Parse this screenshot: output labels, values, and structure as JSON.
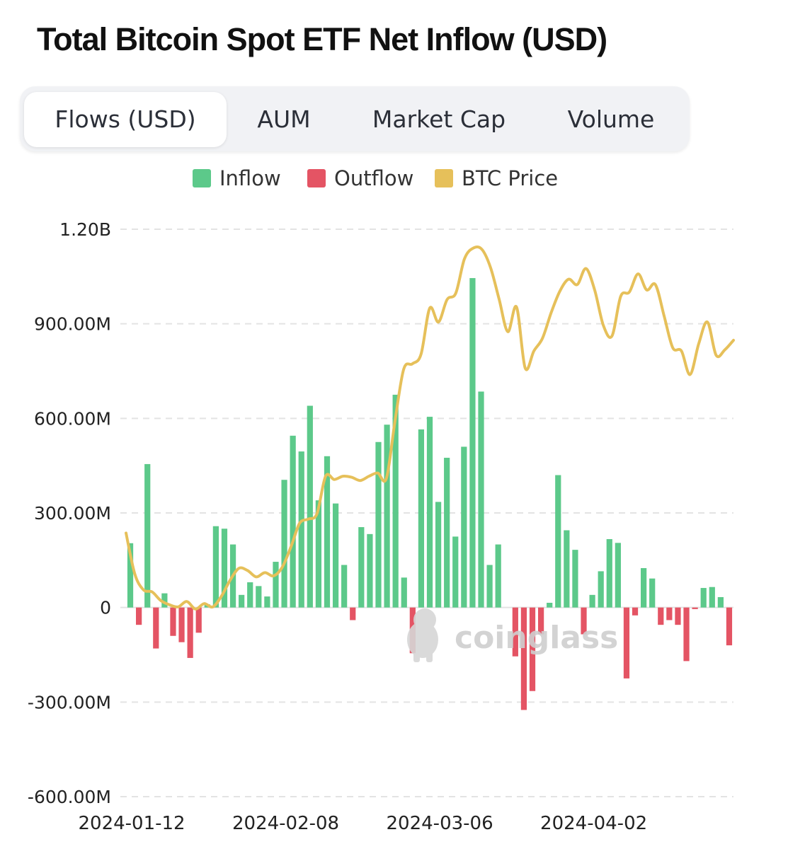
{
  "title": "Total Bitcoin Spot ETF Net Inflow (USD)",
  "tabs": [
    {
      "label": "Flows (USD)",
      "active": true
    },
    {
      "label": "AUM",
      "active": false
    },
    {
      "label": "Market Cap",
      "active": false
    },
    {
      "label": "Volume",
      "active": false
    }
  ],
  "legend": [
    {
      "label": "Inflow",
      "color": "#5cc98a"
    },
    {
      "label": "Outflow",
      "color": "#e45464"
    },
    {
      "label": "BTC Price",
      "color": "#e6c05a"
    }
  ],
  "watermark": "coinglass",
  "chart_data": {
    "type": "bar",
    "ylim": [
      -600,
      1200
    ],
    "yticks": [
      1200,
      900,
      600,
      300,
      0,
      -300,
      -600
    ],
    "ytick_labels": [
      "1.20B",
      "900.00M",
      "600.00M",
      "300.00M",
      "0",
      "-300.00M",
      "-600.00M"
    ],
    "x_labels": [
      {
        "index": 0,
        "label": "2024-01-12"
      },
      {
        "index": 18,
        "label": "2024-02-08"
      },
      {
        "index": 36,
        "label": "2024-03-06"
      },
      {
        "index": 54,
        "label": "2024-04-02"
      }
    ],
    "grid": true,
    "legend_position": "top-center",
    "series": [
      {
        "name": "Net Inflow",
        "unit": "M USD",
        "values": [
          204,
          -55,
          455,
          -130,
          45,
          -90,
          -110,
          -160,
          -80,
          10,
          258,
          250,
          200,
          40,
          80,
          68,
          35,
          145,
          405,
          545,
          495,
          640,
          340,
          480,
          330,
          135,
          -40,
          255,
          233,
          525,
          580,
          675,
          95,
          -145,
          565,
          605,
          335,
          475,
          225,
          510,
          1045,
          685,
          135,
          200,
          0,
          -155,
          -325,
          -265,
          -85,
          15,
          420,
          245,
          183,
          -85,
          40,
          115,
          217,
          205,
          -225,
          -25,
          125,
          92,
          -55,
          -40,
          -55,
          -170,
          -5,
          62,
          65,
          33,
          -120
        ]
      },
      {
        "name": "BTC Price",
        "unit": "USD",
        "axis": "none",
        "values": [
          46500,
          42700,
          41200,
          41000,
          40200,
          39800,
          39600,
          40100,
          39400,
          39900,
          39600,
          40600,
          42100,
          43200,
          43000,
          42400,
          42800,
          42500,
          43300,
          45200,
          47400,
          47800,
          48300,
          51800,
          51500,
          51800,
          51700,
          51400,
          51800,
          52100,
          51600,
          57000,
          61800,
          62300,
          63200,
          67500,
          66200,
          68300,
          68900,
          72100,
          73100,
          73000,
          71300,
          68300,
          65300,
          67600,
          61900,
          63500,
          64700,
          67100,
          69100,
          70200,
          69700,
          71200,
          69200,
          65900,
          64900,
          68600,
          69000,
          70700,
          69200,
          69700,
          66800,
          63800,
          63500,
          61300,
          64200,
          66200,
          63100,
          63600,
          64500
        ]
      }
    ]
  }
}
